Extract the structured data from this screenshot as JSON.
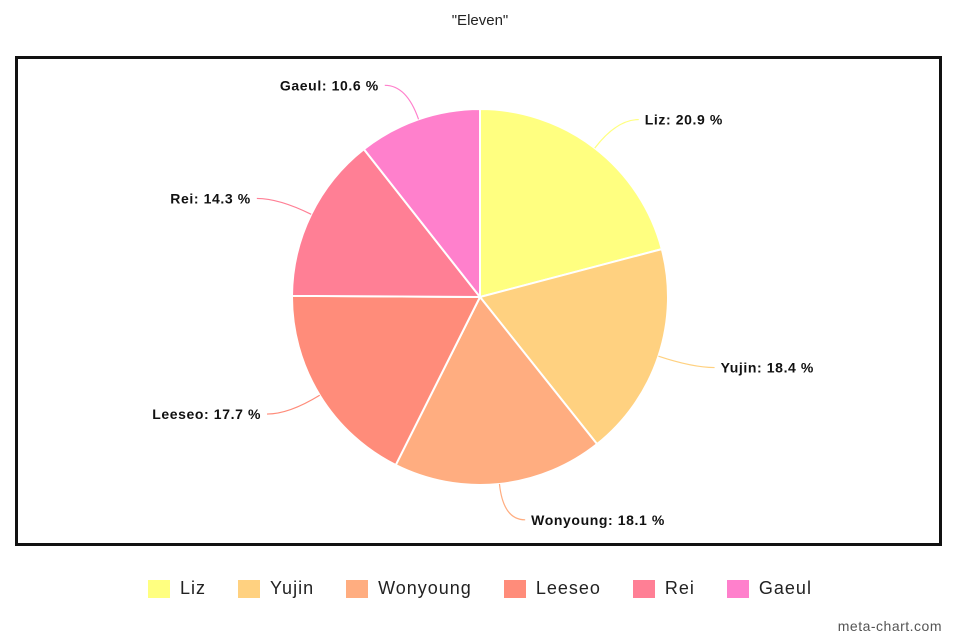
{
  "chart_data": {
    "type": "pie",
    "title": "\"Eleven\"",
    "unit": "%",
    "start_angle_deg": 0,
    "direction": "clockwise",
    "legend_position": "bottom",
    "series": [
      {
        "name": "Liz",
        "value": 20.9,
        "label": "Liz: 20.9 %",
        "color": "#FFFF80"
      },
      {
        "name": "Yujin",
        "value": 18.4,
        "label": "Yujin: 18.4 %",
        "color": "#FFD180"
      },
      {
        "name": "Wonyoung",
        "value": 18.1,
        "label": "Wonyoung: 18.1 %",
        "color": "#FFAD80"
      },
      {
        "name": "Leeseo",
        "value": 17.7,
        "label": "Leeseo: 17.7 %",
        "color": "#FF8C7A"
      },
      {
        "name": "Rei",
        "value": 14.3,
        "label": "Rei: 14.3 %",
        "color": "#FF7F95"
      },
      {
        "name": "Gaeul",
        "value": 10.6,
        "label": "Gaeul: 10.6 %",
        "color": "#FF80CC"
      }
    ]
  },
  "watermark": "meta-chart.com"
}
